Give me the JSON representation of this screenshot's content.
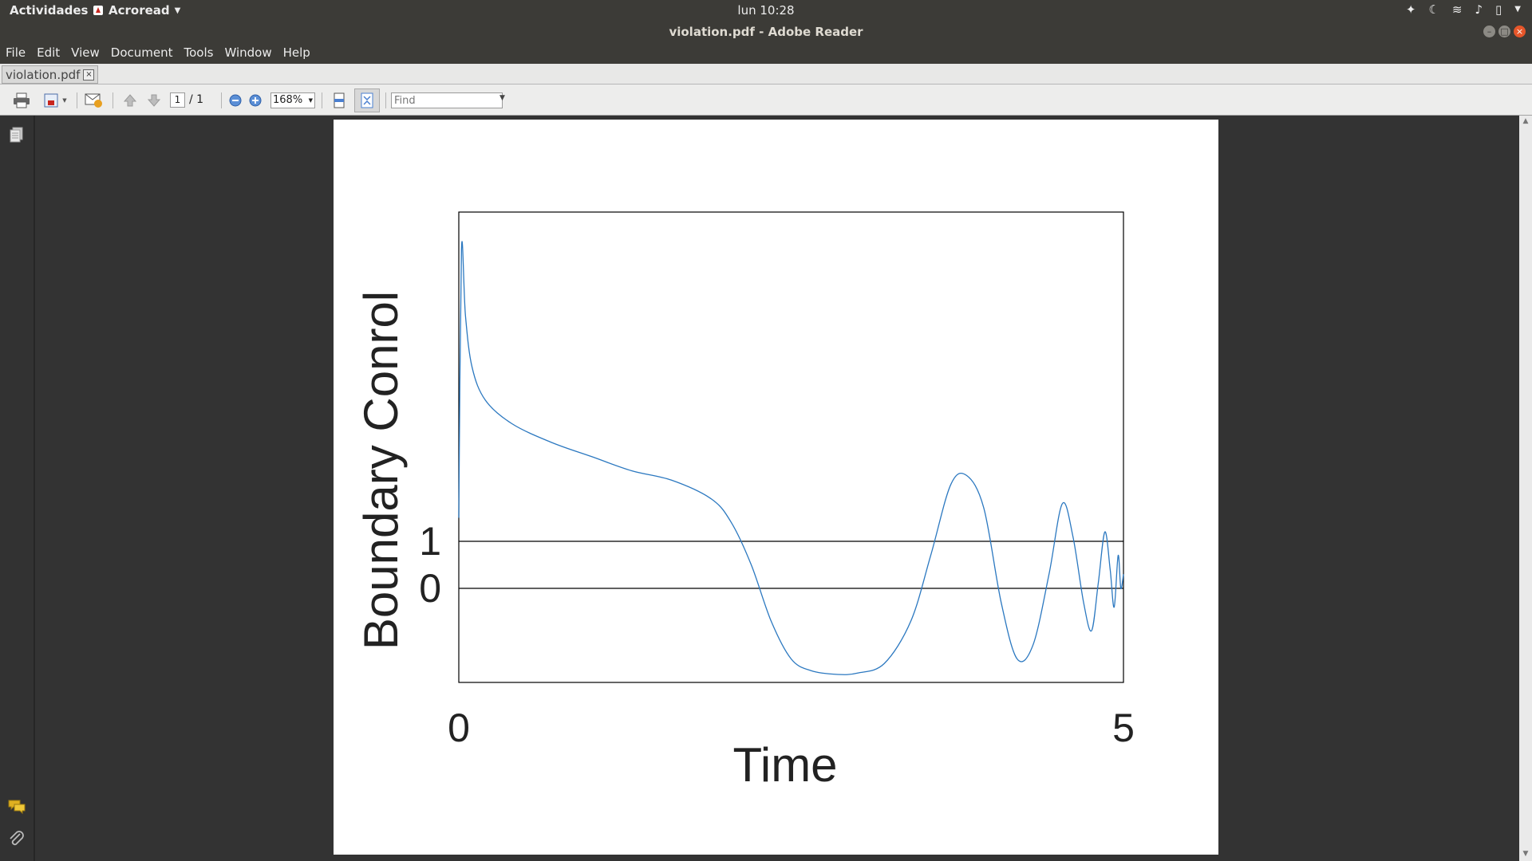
{
  "topbar": {
    "activities": "Actividades",
    "app_name": "Acroread",
    "clock": "lun 10:28"
  },
  "window": {
    "title": "violation.pdf - Adobe Reader"
  },
  "menu": [
    "File",
    "Edit",
    "View",
    "Document",
    "Tools",
    "Window",
    "Help"
  ],
  "tab": {
    "label": "violation.pdf"
  },
  "toolbar": {
    "page_current": "1",
    "page_of": "/ 1",
    "zoom": "168%",
    "find_placeholder": "Find"
  },
  "icons": {
    "print": "print-icon",
    "save": "save-icon",
    "email": "email-icon",
    "prev_page": "arrow-up-icon",
    "next_page": "arrow-down-icon",
    "zoom_out": "zoom-out-icon",
    "zoom_in": "zoom-in-icon",
    "fit_page": "fit-page-icon",
    "fit_width": "fit-width-icon",
    "pages_panel": "pages-icon",
    "comments": "comments-icon",
    "attachments": "paperclip-icon"
  },
  "colors": {
    "line": "#2b78c0",
    "chrome": "#3c3b37",
    "close": "#e6562a"
  },
  "chart_data": {
    "type": "line",
    "title": "",
    "xlabel": "Time",
    "ylabel": "Boundary Conrol",
    "xticks": [
      "0",
      "5"
    ],
    "yticks": [
      "0",
      "1"
    ],
    "xlim": [
      0,
      5
    ],
    "ylim": [
      -2,
      8
    ],
    "hlines": [
      0,
      1
    ],
    "series": [
      {
        "x": [
          0,
          0.02,
          0.05,
          0.1,
          0.2,
          0.4,
          0.7,
          1.0,
          1.3,
          1.6,
          1.9,
          2.05,
          2.2,
          2.35,
          2.5,
          2.65,
          2.85,
          3.0,
          3.2,
          3.4,
          3.55,
          3.7,
          3.82,
          3.95,
          4.08,
          4.2,
          4.32,
          4.44,
          4.54,
          4.62,
          4.7,
          4.76,
          4.81,
          4.86,
          4.9,
          4.93,
          4.96,
          4.98,
          5.0
        ],
        "y": [
          1.5,
          7.2,
          5.8,
          4.7,
          4.0,
          3.5,
          3.1,
          2.8,
          2.5,
          2.3,
          1.9,
          1.4,
          0.5,
          -0.7,
          -1.5,
          -1.75,
          -1.83,
          -1.8,
          -1.6,
          -0.7,
          0.7,
          2.2,
          2.4,
          1.7,
          -0.3,
          -1.5,
          -1.2,
          0.3,
          1.8,
          1.1,
          -0.3,
          -0.9,
          0.1,
          1.2,
          0.4,
          -0.4,
          0.7,
          0.0,
          0.3
        ]
      }
    ]
  }
}
